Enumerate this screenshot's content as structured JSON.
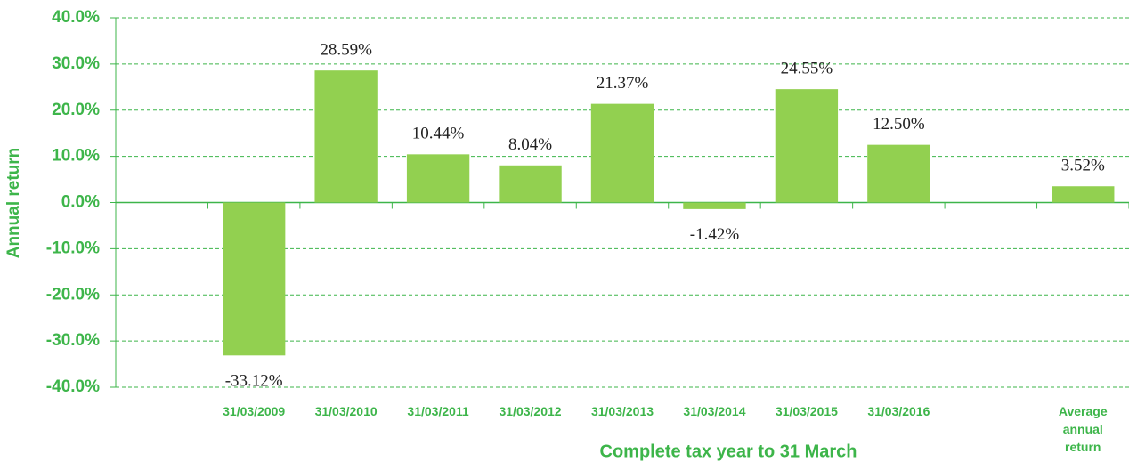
{
  "chart_data": {
    "type": "bar",
    "x_label": "Complete tax year to 31 March",
    "y_label": "Annual return",
    "categories": [
      null,
      "31/03/2009",
      "31/03/2010",
      "31/03/2011",
      "31/03/2012",
      "31/03/2013",
      "31/03/2014",
      "31/03/2015",
      "31/03/2016",
      null,
      "Average annual return"
    ],
    "values": [
      null,
      -33.12,
      28.59,
      10.44,
      8.04,
      21.37,
      -1.42,
      24.55,
      12.5,
      null,
      3.52
    ],
    "value_labels": [
      null,
      "-33.12%",
      "28.59%",
      "10.44%",
      "8.04%",
      "21.37%",
      "-1.42%",
      "24.55%",
      "12.50%",
      null,
      "3.52%"
    ],
    "color": "#92d050",
    "ylim": [
      -40,
      40
    ],
    "yticks": [
      {
        "value": -40,
        "label": "-40.0%"
      },
      {
        "value": -30,
        "label": "-30.0%"
      },
      {
        "value": -20,
        "label": "-20.0%"
      },
      {
        "value": -10,
        "label": "-10.0%"
      },
      {
        "value": 0,
        "label": "0.0%"
      },
      {
        "value": 10,
        "label": "10.0%"
      },
      {
        "value": 20,
        "label": "20.0%"
      },
      {
        "value": 30,
        "label": "30.0%"
      },
      {
        "value": 40,
        "label": "40.0%"
      }
    ],
    "grid": true
  }
}
